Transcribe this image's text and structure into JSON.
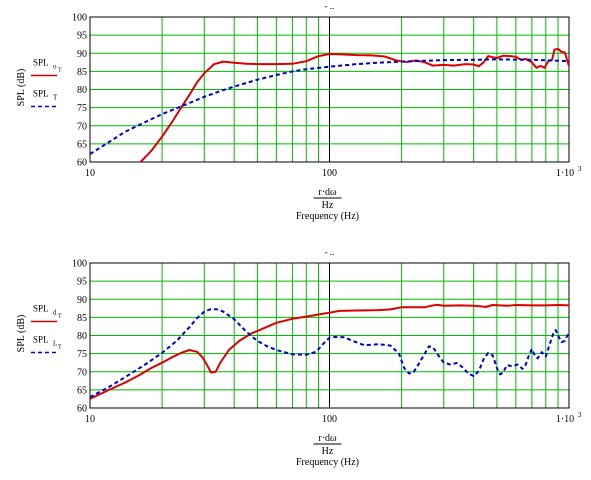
{
  "chart_data": [
    {
      "type": "line",
      "title": "",
      "xscale": "log",
      "xlim": [
        10,
        1000
      ],
      "ylim": [
        60,
        100
      ],
      "yticks": [
        60,
        65,
        70,
        75,
        80,
        85,
        90,
        95,
        100
      ],
      "xtick_labels": [
        "10",
        "100",
        "1·10"
      ],
      "xtick_exponent": "3",
      "xlabel_numerator": "r·dω",
      "xlabel_denominator": "Hz",
      "xlabel": "Frequency (Hz)",
      "ylabel": "SPL (dB)",
      "top_marker": "- ..",
      "grid": true,
      "legend_position": "left",
      "series": [
        {
          "name": "SPL",
          "name_sub": "o",
          "name_subsub": "T",
          "color": "#dd0000",
          "dash": "solid",
          "points": [
            [
              16,
              59.5
            ],
            [
              18,
              63
            ],
            [
              20,
              67
            ],
            [
              22,
              71
            ],
            [
              24,
              75
            ],
            [
              26,
              78.5
            ],
            [
              28,
              82
            ],
            [
              30,
              84.5
            ],
            [
              33,
              87
            ],
            [
              36,
              87.7
            ],
            [
              40,
              87.4
            ],
            [
              45,
              87.1
            ],
            [
              50,
              87
            ],
            [
              60,
              87
            ],
            [
              70,
              87.1
            ],
            [
              80,
              87.8
            ],
            [
              90,
              89.2
            ],
            [
              100,
              89.8
            ],
            [
              110,
              89.7
            ],
            [
              130,
              89.5
            ],
            [
              150,
              89.4
            ],
            [
              170,
              89.1
            ],
            [
              190,
              88
            ],
            [
              210,
              87.6
            ],
            [
              230,
              88
            ],
            [
              250,
              87.5
            ],
            [
              270,
              86.6
            ],
            [
              300,
              86.8
            ],
            [
              330,
              86.6
            ],
            [
              370,
              87
            ],
            [
              400,
              86.9
            ],
            [
              420,
              86.4
            ],
            [
              440,
              87.5
            ],
            [
              460,
              89.2
            ],
            [
              480,
              88.9
            ],
            [
              500,
              88.7
            ],
            [
              530,
              89.3
            ],
            [
              570,
              89.2
            ],
            [
              600,
              89
            ],
            [
              630,
              88.2
            ],
            [
              660,
              88.4
            ],
            [
              700,
              87.5
            ],
            [
              730,
              86
            ],
            [
              760,
              86.5
            ],
            [
              790,
              86
            ],
            [
              820,
              87.9
            ],
            [
              850,
              88.2
            ],
            [
              870,
              91
            ],
            [
              900,
              91.2
            ],
            [
              930,
              90.4
            ],
            [
              960,
              90.2
            ],
            [
              1000,
              86.5
            ]
          ]
        },
        {
          "name": "SPL",
          "name_sub": "T",
          "name_subsub": "",
          "color": "#0000cc",
          "dash": "dashed",
          "points": [
            [
              10,
              62.2
            ],
            [
              12,
              65.5
            ],
            [
              14,
              68.3
            ],
            [
              17,
              71
            ],
            [
              20,
              73.2
            ],
            [
              25,
              75.8
            ],
            [
              30,
              78
            ],
            [
              35,
              79.6
            ],
            [
              40,
              80.8
            ],
            [
              50,
              82.7
            ],
            [
              60,
              84
            ],
            [
              70,
              85
            ],
            [
              80,
              85.6
            ],
            [
              100,
              86.3
            ],
            [
              130,
              87
            ],
            [
              160,
              87.4
            ],
            [
              200,
              87.7
            ],
            [
              300,
              88.1
            ],
            [
              400,
              88.2
            ],
            [
              500,
              88.3
            ],
            [
              700,
              88.2
            ],
            [
              850,
              88
            ],
            [
              1000,
              87.8
            ]
          ]
        }
      ]
    },
    {
      "type": "line",
      "title": "",
      "xscale": "log",
      "xlim": [
        10,
        1000
      ],
      "ylim": [
        60,
        100
      ],
      "yticks": [
        60,
        65,
        70,
        75,
        80,
        85,
        90,
        95,
        100
      ],
      "xtick_labels": [
        "10",
        "100",
        "1·10"
      ],
      "xtick_exponent": "3",
      "xlabel_numerator": "r·dω",
      "xlabel_denominator": "Hz",
      "xlabel": "Frequency (Hz)",
      "ylabel": "SPL (dB)",
      "top_marker": "- ..",
      "grid": true,
      "legend_position": "left",
      "series": [
        {
          "name": "SPL",
          "name_sub": "d",
          "name_subsub": "T",
          "color": "#dd0000",
          "dash": "solid",
          "points": [
            [
              10,
              62.5
            ],
            [
              12,
              65
            ],
            [
              14,
              67
            ],
            [
              16,
              69
            ],
            [
              18,
              71
            ],
            [
              20,
              72.5
            ],
            [
              22,
              74
            ],
            [
              24,
              75.2
            ],
            [
              26,
              76
            ],
            [
              28,
              75.5
            ],
            [
              29.5,
              74
            ],
            [
              31,
              71.5
            ],
            [
              32,
              69.8
            ],
            [
              33.5,
              70
            ],
            [
              35,
              72.5
            ],
            [
              38,
              76
            ],
            [
              42,
              78.5
            ],
            [
              47,
              80.5
            ],
            [
              53,
              82
            ],
            [
              60,
              83.5
            ],
            [
              70,
              84.6
            ],
            [
              80,
              85.2
            ],
            [
              90,
              85.8
            ],
            [
              100,
              86.3
            ],
            [
              110,
              86.8
            ],
            [
              130,
              86.9
            ],
            [
              160,
              87
            ],
            [
              180,
              87.2
            ],
            [
              200,
              87.8
            ],
            [
              250,
              87.8
            ],
            [
              280,
              88.5
            ],
            [
              300,
              88.2
            ],
            [
              350,
              88.3
            ],
            [
              400,
              88.2
            ],
            [
              450,
              87.9
            ],
            [
              480,
              88.4
            ],
            [
              550,
              88.2
            ],
            [
              600,
              88.4
            ],
            [
              700,
              88.3
            ],
            [
              800,
              88.3
            ],
            [
              900,
              88.4
            ],
            [
              1000,
              88.3
            ]
          ]
        },
        {
          "name": "SPL",
          "name_sub": "L",
          "name_subsub": "T",
          "color": "#0000cc",
          "dash": "dashed",
          "points": [
            [
              10,
              63
            ],
            [
              12,
              65.8
            ],
            [
              14,
              68.5
            ],
            [
              17,
              72
            ],
            [
              20,
              75.2
            ],
            [
              23,
              78.5
            ],
            [
              26,
              82.3
            ],
            [
              28,
              84.8
            ],
            [
              30,
              86.6
            ],
            [
              32,
              87.3
            ],
            [
              34,
              87.2
            ],
            [
              36,
              86.6
            ],
            [
              40,
              84.5
            ],
            [
              45,
              81
            ],
            [
              50,
              78.5
            ],
            [
              55,
              77
            ],
            [
              60,
              76
            ],
            [
              70,
              74.8
            ],
            [
              80,
              74.7
            ],
            [
              88,
              75.5
            ],
            [
              95,
              78
            ],
            [
              100,
              79.4
            ],
            [
              105,
              79.6
            ],
            [
              115,
              79.5
            ],
            [
              125,
              78.5
            ],
            [
              140,
              77.3
            ],
            [
              160,
              77.6
            ],
            [
              180,
              77.2
            ],
            [
              195,
              75
            ],
            [
              205,
              71
            ],
            [
              215,
              69.5
            ],
            [
              225,
              70
            ],
            [
              235,
              72
            ],
            [
              250,
              75
            ],
            [
              260,
              77
            ],
            [
              270,
              76.8
            ],
            [
              285,
              74.5
            ],
            [
              300,
              72.5
            ],
            [
              320,
              72
            ],
            [
              340,
              72.4
            ],
            [
              360,
              71.2
            ],
            [
              380,
              69.5
            ],
            [
              400,
              68.8
            ],
            [
              420,
              70.2
            ],
            [
              440,
              73.5
            ],
            [
              460,
              75.2
            ],
            [
              480,
              74.5
            ],
            [
              500,
              71
            ],
            [
              515,
              69.3
            ],
            [
              530,
              69.7
            ],
            [
              550,
              71.8
            ],
            [
              580,
              71.5
            ],
            [
              610,
              72
            ],
            [
              640,
              70.8
            ],
            [
              660,
              72
            ],
            [
              680,
              74.5
            ],
            [
              700,
              76.3
            ],
            [
              720,
              74.5
            ],
            [
              740,
              73.7
            ],
            [
              770,
              75.4
            ],
            [
              800,
              74.2
            ],
            [
              830,
              77.5
            ],
            [
              860,
              80.5
            ],
            [
              880,
              81.5
            ],
            [
              900,
              80
            ],
            [
              930,
              78.2
            ],
            [
              960,
              78.5
            ],
            [
              1000,
              81
            ]
          ]
        }
      ]
    }
  ]
}
